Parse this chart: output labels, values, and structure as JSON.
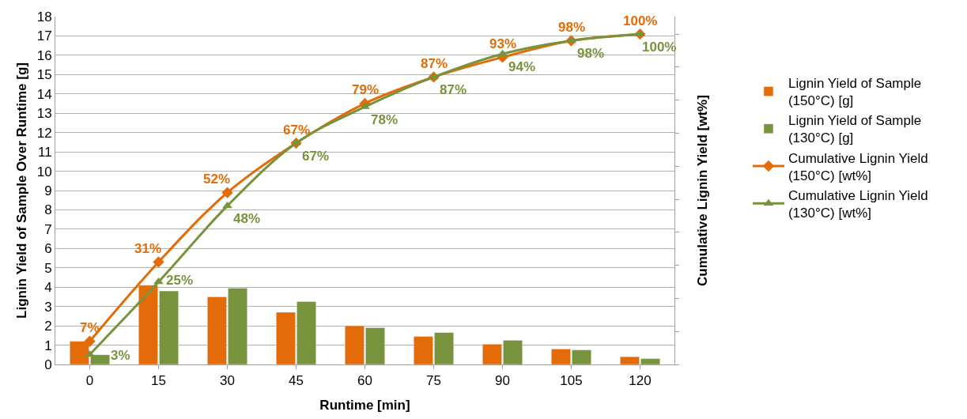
{
  "chart_data": {
    "type": "bar",
    "xlabel": "Runtime [min]",
    "ylabel": "Lignin Yield of Sample Over Runtime [g]",
    "y2label": "Cumulative Lignin Yield [wt%]",
    "categories": [
      "0",
      "15",
      "30",
      "45",
      "60",
      "75",
      "90",
      "105",
      "120"
    ],
    "series": [
      {
        "name": "Lignin Yield of Sample (150°C) [g]",
        "color": "#e36c09",
        "values": [
          1.2,
          4.1,
          3.5,
          2.7,
          2.0,
          1.45,
          1.05,
          0.8,
          0.4
        ]
      },
      {
        "name": "Lignin Yield of Sample (130°C) [g]",
        "color": "#77933c",
        "values": [
          0.5,
          3.8,
          3.95,
          3.25,
          1.9,
          1.65,
          1.25,
          0.75,
          0.3
        ]
      },
      {
        "name": "Cumulative Lignin Yield (150°C) [wt%]",
        "type": "line",
        "axis": "y2",
        "marker": "diamond",
        "color": "#e36c09",
        "values": [
          7,
          31,
          52,
          67,
          79,
          87,
          93,
          98,
          100
        ],
        "value_labels": [
          "7%",
          "31%",
          "52%",
          "67%",
          "79%",
          "87%",
          "93%",
          "98%",
          "100%"
        ]
      },
      {
        "name": "Cumulative Lignin Yield (130°C) [wt%]",
        "type": "line",
        "axis": "y2",
        "marker": "triangle",
        "color": "#77933c",
        "values": [
          3,
          25,
          48,
          67,
          78,
          87,
          94,
          98,
          100
        ],
        "value_labels": [
          "3%",
          "25%",
          "48%",
          "67%",
          "78%",
          "87%",
          "94%",
          "98%",
          "100%"
        ]
      }
    ],
    "ylim": [
      0,
      18
    ],
    "yticks": [
      0,
      1,
      2,
      3,
      4,
      5,
      6,
      7,
      8,
      9,
      10,
      11,
      12,
      13,
      14,
      15,
      16,
      17,
      18
    ],
    "y2lim": [
      0,
      105.3
    ],
    "y2ticks": [
      {
        "value": 0,
        "label": null
      },
      {
        "value": 10,
        "label": null
      },
      {
        "value": 20,
        "label": null
      },
      {
        "value": 30,
        "label": null
      },
      {
        "value": 40,
        "label": null
      },
      {
        "value": 50,
        "label": null
      },
      {
        "value": 60,
        "label": null
      },
      {
        "value": 70,
        "label": null
      },
      {
        "value": 80,
        "label": null
      },
      {
        "value": 90,
        "label": null
      },
      {
        "value": 100,
        "label": null
      }
    ],
    "grid": "y",
    "legend": "right"
  }
}
